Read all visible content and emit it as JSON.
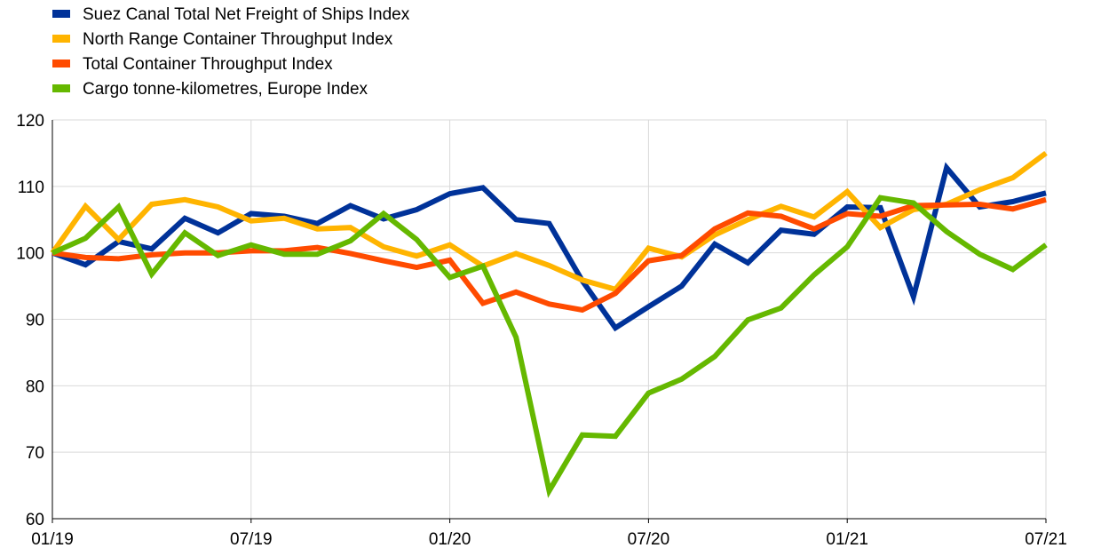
{
  "chart_data": {
    "type": "line",
    "title": "",
    "xlabel": "",
    "ylabel": "",
    "ylim": [
      60,
      120
    ],
    "yticks": [
      60,
      70,
      80,
      90,
      100,
      110,
      120
    ],
    "x_tick_labels": [
      "01/19",
      "07/19",
      "01/20",
      "07/20",
      "01/21",
      "07/21"
    ],
    "x": [
      "01/19",
      "02/19",
      "03/19",
      "04/19",
      "05/19",
      "06/19",
      "07/19",
      "08/19",
      "09/19",
      "10/19",
      "11/19",
      "12/19",
      "01/20",
      "02/20",
      "03/20",
      "04/20",
      "05/20",
      "06/20",
      "07/20",
      "08/20",
      "09/20",
      "10/20",
      "11/20",
      "12/20",
      "01/21",
      "02/21",
      "03/21",
      "04/21",
      "05/21",
      "06/21",
      "07/21"
    ],
    "grid": "horizontal and vertical",
    "legend_position": "top-left",
    "series": [
      {
        "name": "Suez Canal Total Net Freight of Ships Index",
        "color": "#003299",
        "values": [
          100,
          98.2,
          101.7,
          100.6,
          105.2,
          103,
          105.9,
          105.5,
          104.4,
          107.1,
          105.1,
          106.5,
          108.9,
          109.8,
          105,
          104.4,
          95.8,
          88.7,
          91.9,
          95,
          101.3,
          98.5,
          103.4,
          102.8,
          106.9,
          106.8,
          93.4,
          112.8,
          106.9,
          107.7,
          109
        ]
      },
      {
        "name": "North Range Container Throughput Index",
        "color": "#FFB400",
        "values": [
          100,
          107,
          102,
          107.3,
          108,
          106.9,
          104.8,
          105.2,
          103.6,
          103.8,
          100.9,
          99.5,
          101.2,
          98,
          99.9,
          98.1,
          95.9,
          94.5,
          100.7,
          99.4,
          102.7,
          105,
          107,
          105.4,
          109.2,
          103.8,
          106.5,
          107.3,
          109.5,
          111.3,
          115
        ]
      },
      {
        "name": "Total Container Throughput Index",
        "color": "#FF4B00",
        "values": [
          100,
          99.3,
          99.1,
          99.7,
          100,
          100,
          100.3,
          100.3,
          100.8,
          99.9,
          98.8,
          97.8,
          98.9,
          92.4,
          94.1,
          92.3,
          91.4,
          93.9,
          98.8,
          99.6,
          103.6,
          106,
          105.5,
          103.6,
          105.9,
          105.5,
          107.1,
          107.2,
          107.3,
          106.6,
          108
        ]
      },
      {
        "name": "Cargo tonne-kilometres, Europe Index",
        "color": "#65B800",
        "values": [
          100,
          102.2,
          106.9,
          96.8,
          103,
          99.6,
          101.2,
          99.8,
          99.8,
          101.8,
          105.9,
          102,
          96.3,
          98,
          87.3,
          64.2,
          72.6,
          72.4,
          78.9,
          81,
          84.4,
          89.9,
          91.7,
          96.7,
          100.9,
          108.3,
          107.5,
          103.2,
          99.8,
          97.5,
          101.2
        ]
      }
    ]
  }
}
